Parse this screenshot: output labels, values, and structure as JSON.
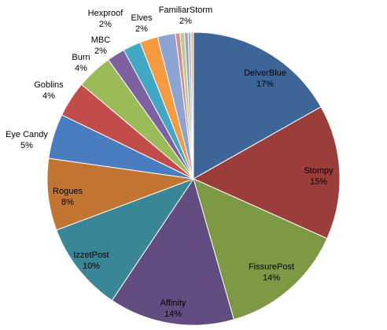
{
  "chart_data": {
    "type": "pie",
    "title": "",
    "legend": "none",
    "start_angle_deg": 0,
    "direction": "clockwise",
    "slices": [
      {
        "name": "DelverBlue",
        "value": 17,
        "label": "17%",
        "color": "#3e6597"
      },
      {
        "name": "Stompy",
        "value": 15,
        "label": "15%",
        "color": "#9b3d3a"
      },
      {
        "name": "FissurePost",
        "value": 14,
        "label": "14%",
        "color": "#7e9944"
      },
      {
        "name": "Affinity",
        "value": 14,
        "label": "14%",
        "color": "#634d80"
      },
      {
        "name": "IzzetPost",
        "value": 10,
        "label": "10%",
        "color": "#388696"
      },
      {
        "name": "Rogues",
        "value": 8,
        "label": "8%",
        "color": "#c27532"
      },
      {
        "name": "Eye Candy",
        "value": 5,
        "label": "5%",
        "color": "#4a7cc0"
      },
      {
        "name": "Goblins",
        "value": 4,
        "label": "4%",
        "color": "#c24c4a"
      },
      {
        "name": "Burn",
        "value": 4,
        "label": "4%",
        "color": "#9bbb59"
      },
      {
        "name": "MBC",
        "value": 2,
        "label": "2%",
        "color": "#7e61a0"
      },
      {
        "name": "Hexproof",
        "value": 2,
        "label": "2%",
        "color": "#40a7c4"
      },
      {
        "name": "Elves",
        "value": 2,
        "label": "2%",
        "color": "#f59a3e"
      },
      {
        "name": "FamiliarStorm",
        "value": 2,
        "label": "2%",
        "color": "#8ca4d2"
      },
      {
        "name": "",
        "value": 0.5,
        "label": "",
        "color": "#d98b8a"
      },
      {
        "name": "",
        "value": 0.5,
        "label": "",
        "color": "#b6cf8b"
      },
      {
        "name": "",
        "value": 0.4,
        "label": "",
        "color": "#a996c2"
      },
      {
        "name": "",
        "value": 0.3,
        "label": "",
        "color": "#86c1d6"
      },
      {
        "name": "",
        "value": 0.3,
        "label": "",
        "color": "#f7b984"
      }
    ]
  }
}
